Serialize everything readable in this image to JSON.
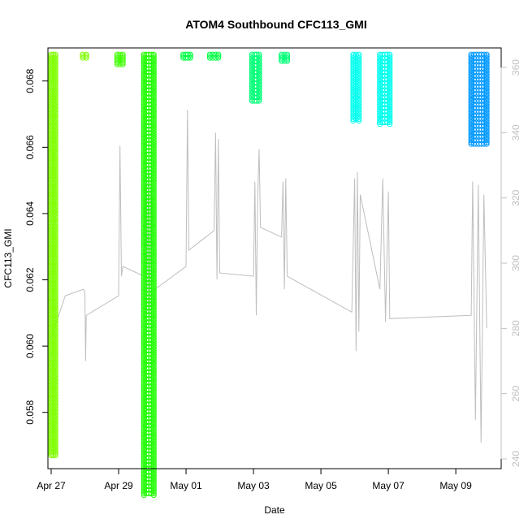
{
  "chart_data": {
    "type": "scatter",
    "title": "ATOM4 Southbound CFC113_GMI",
    "xlabel": "Date",
    "ylabel": "CFC113_GMI",
    "x_range": [
      "2017-04-27 00:00",
      "2017-05-10 06:00"
    ],
    "ylim": [
      0.0564,
      0.0689
    ],
    "y2lim": [
      238,
      365
    ],
    "x_ticks": [
      "Apr 27",
      "Apr 29",
      "May 01",
      "May 03",
      "May 05",
      "May 07",
      "May 09"
    ],
    "y_ticks": [
      "0.058",
      "0.060",
      "0.062",
      "0.064",
      "0.066",
      "0.068"
    ],
    "y2_ticks": [
      "240",
      "260",
      "280",
      "300",
      "320",
      "340",
      "360"
    ],
    "grid": false,
    "legend": "none",
    "colors": {
      "title": "#000000",
      "axis": "#000000",
      "y2_axis": "#c0c0c0",
      "y2_trace": "#bebebe"
    },
    "series": [
      {
        "color": "#7fff00",
        "segments": [
          {
            "x_start": "2017-04-27 00:00",
            "x_end": "2017-04-27 03:00",
            "y_min": 0.0567,
            "y_max": 0.0688
          },
          {
            "x_start": "2017-04-27 22:30",
            "x_end": "2017-04-28 01:00",
            "y_min": 0.0687,
            "y_max": 0.0688
          }
        ]
      },
      {
        "color": "#3fff00",
        "segments": [
          {
            "x_start": "2017-04-28 23:00",
            "x_end": "2017-04-29 03:00",
            "y_min": 0.0685,
            "y_max": 0.0688
          }
        ]
      },
      {
        "color": "#1ffd00",
        "segments": [
          {
            "x_start": "2017-04-29 18:00",
            "x_end": "2017-04-30 01:00",
            "y_min": 0.0555,
            "y_max": 0.0688
          }
        ]
      },
      {
        "color": "#00ff44",
        "segments": [
          {
            "x_start": "2017-04-30 22:00",
            "x_end": "2017-05-01 03:00",
            "y_min": 0.0687,
            "y_max": 0.0688
          },
          {
            "x_start": "2017-05-01 17:00",
            "x_end": "2017-05-01 23:00",
            "y_min": 0.0687,
            "y_max": 0.0688
          }
        ]
      },
      {
        "color": "#00ff77",
        "segments": [
          {
            "x_start": "2017-05-02 23:00",
            "x_end": "2017-05-03 04:00",
            "y_min": 0.0674,
            "y_max": 0.0688
          },
          {
            "x_start": "2017-05-03 20:00",
            "x_end": "2017-05-04 00:00",
            "y_min": 0.0686,
            "y_max": 0.0688
          }
        ]
      },
      {
        "color": "#00ffee",
        "segments": [
          {
            "x_start": "2017-05-05 23:00",
            "x_end": "2017-05-06 03:00",
            "y_min": 0.0668,
            "y_max": 0.0688
          },
          {
            "x_start": "2017-05-06 18:00",
            "x_end": "2017-05-07 01:00",
            "y_min": 0.0667,
            "y_max": 0.0688
          }
        ]
      },
      {
        "color": "#0099ff",
        "segments": [
          {
            "x_start": "2017-05-09 11:00",
            "x_end": "2017-05-09 22:00",
            "y_min": 0.0661,
            "y_max": 0.0688
          }
        ]
      }
    ],
    "y2_series": {
      "color": "#bebebe",
      "points": [
        [
          "2017-04-27 00:00",
          277
        ],
        [
          "2017-04-27 03:00",
          281
        ],
        [
          "2017-04-27 10:00",
          290
        ],
        [
          "2017-04-27 23:00",
          292
        ],
        [
          "2017-04-28 00:00",
          291
        ],
        [
          "2017-04-28 00:30",
          270
        ],
        [
          "2017-04-28 01:00",
          284
        ],
        [
          "2017-04-29 00:00",
          290
        ],
        [
          "2017-04-29 01:00",
          336
        ],
        [
          "2017-04-29 02:00",
          296
        ],
        [
          "2017-04-29 03:00",
          299
        ],
        [
          "2017-04-29 18:00",
          296
        ],
        [
          "2017-04-29 19:00",
          324
        ],
        [
          "2017-04-29 20:00",
          279
        ],
        [
          "2017-04-29 21:00",
          330
        ],
        [
          "2017-04-29 22:00",
          282
        ],
        [
          "2017-04-29 23:00",
          325
        ],
        [
          "2017-04-30 00:00",
          318
        ],
        [
          "2017-04-30 01:00",
          286
        ],
        [
          "2017-04-30 02:00",
          292
        ],
        [
          "2017-05-01 00:00",
          299
        ],
        [
          "2017-05-01 01:00",
          347
        ],
        [
          "2017-05-01 02:00",
          304
        ],
        [
          "2017-05-01 20:00",
          310
        ],
        [
          "2017-05-01 21:00",
          340
        ],
        [
          "2017-05-01 22:00",
          295
        ],
        [
          "2017-05-01 23:00",
          338
        ],
        [
          "2017-05-02 00:00",
          297
        ],
        [
          "2017-05-03 00:00",
          296
        ],
        [
          "2017-05-03 01:00",
          325
        ],
        [
          "2017-05-03 02:00",
          284
        ],
        [
          "2017-05-03 03:00",
          320
        ],
        [
          "2017-05-03 04:00",
          335
        ],
        [
          "2017-05-03 05:00",
          311
        ],
        [
          "2017-05-03 20:00",
          308
        ],
        [
          "2017-05-03 21:00",
          325
        ],
        [
          "2017-05-03 22:00",
          292
        ],
        [
          "2017-05-03 23:00",
          326
        ],
        [
          "2017-05-04 00:00",
          296
        ],
        [
          "2017-05-05 22:00",
          285
        ],
        [
          "2017-05-06 00:00",
          326
        ],
        [
          "2017-05-06 01:00",
          273
        ],
        [
          "2017-05-06 02:00",
          328
        ],
        [
          "2017-05-06 03:00",
          279
        ],
        [
          "2017-05-06 04:00",
          321
        ],
        [
          "2017-05-06 18:00",
          292
        ],
        [
          "2017-05-06 20:00",
          326
        ],
        [
          "2017-05-06 22:00",
          282
        ],
        [
          "2017-05-07 00:00",
          322
        ],
        [
          "2017-05-07 01:00",
          283
        ],
        [
          "2017-05-09 11:00",
          284
        ],
        [
          "2017-05-09 12:00",
          325
        ],
        [
          "2017-05-09 14:00",
          252
        ],
        [
          "2017-05-09 16:00",
          324
        ],
        [
          "2017-05-09 18:00",
          245
        ],
        [
          "2017-05-09 20:00",
          321
        ],
        [
          "2017-05-09 22:00",
          280
        ]
      ]
    }
  }
}
